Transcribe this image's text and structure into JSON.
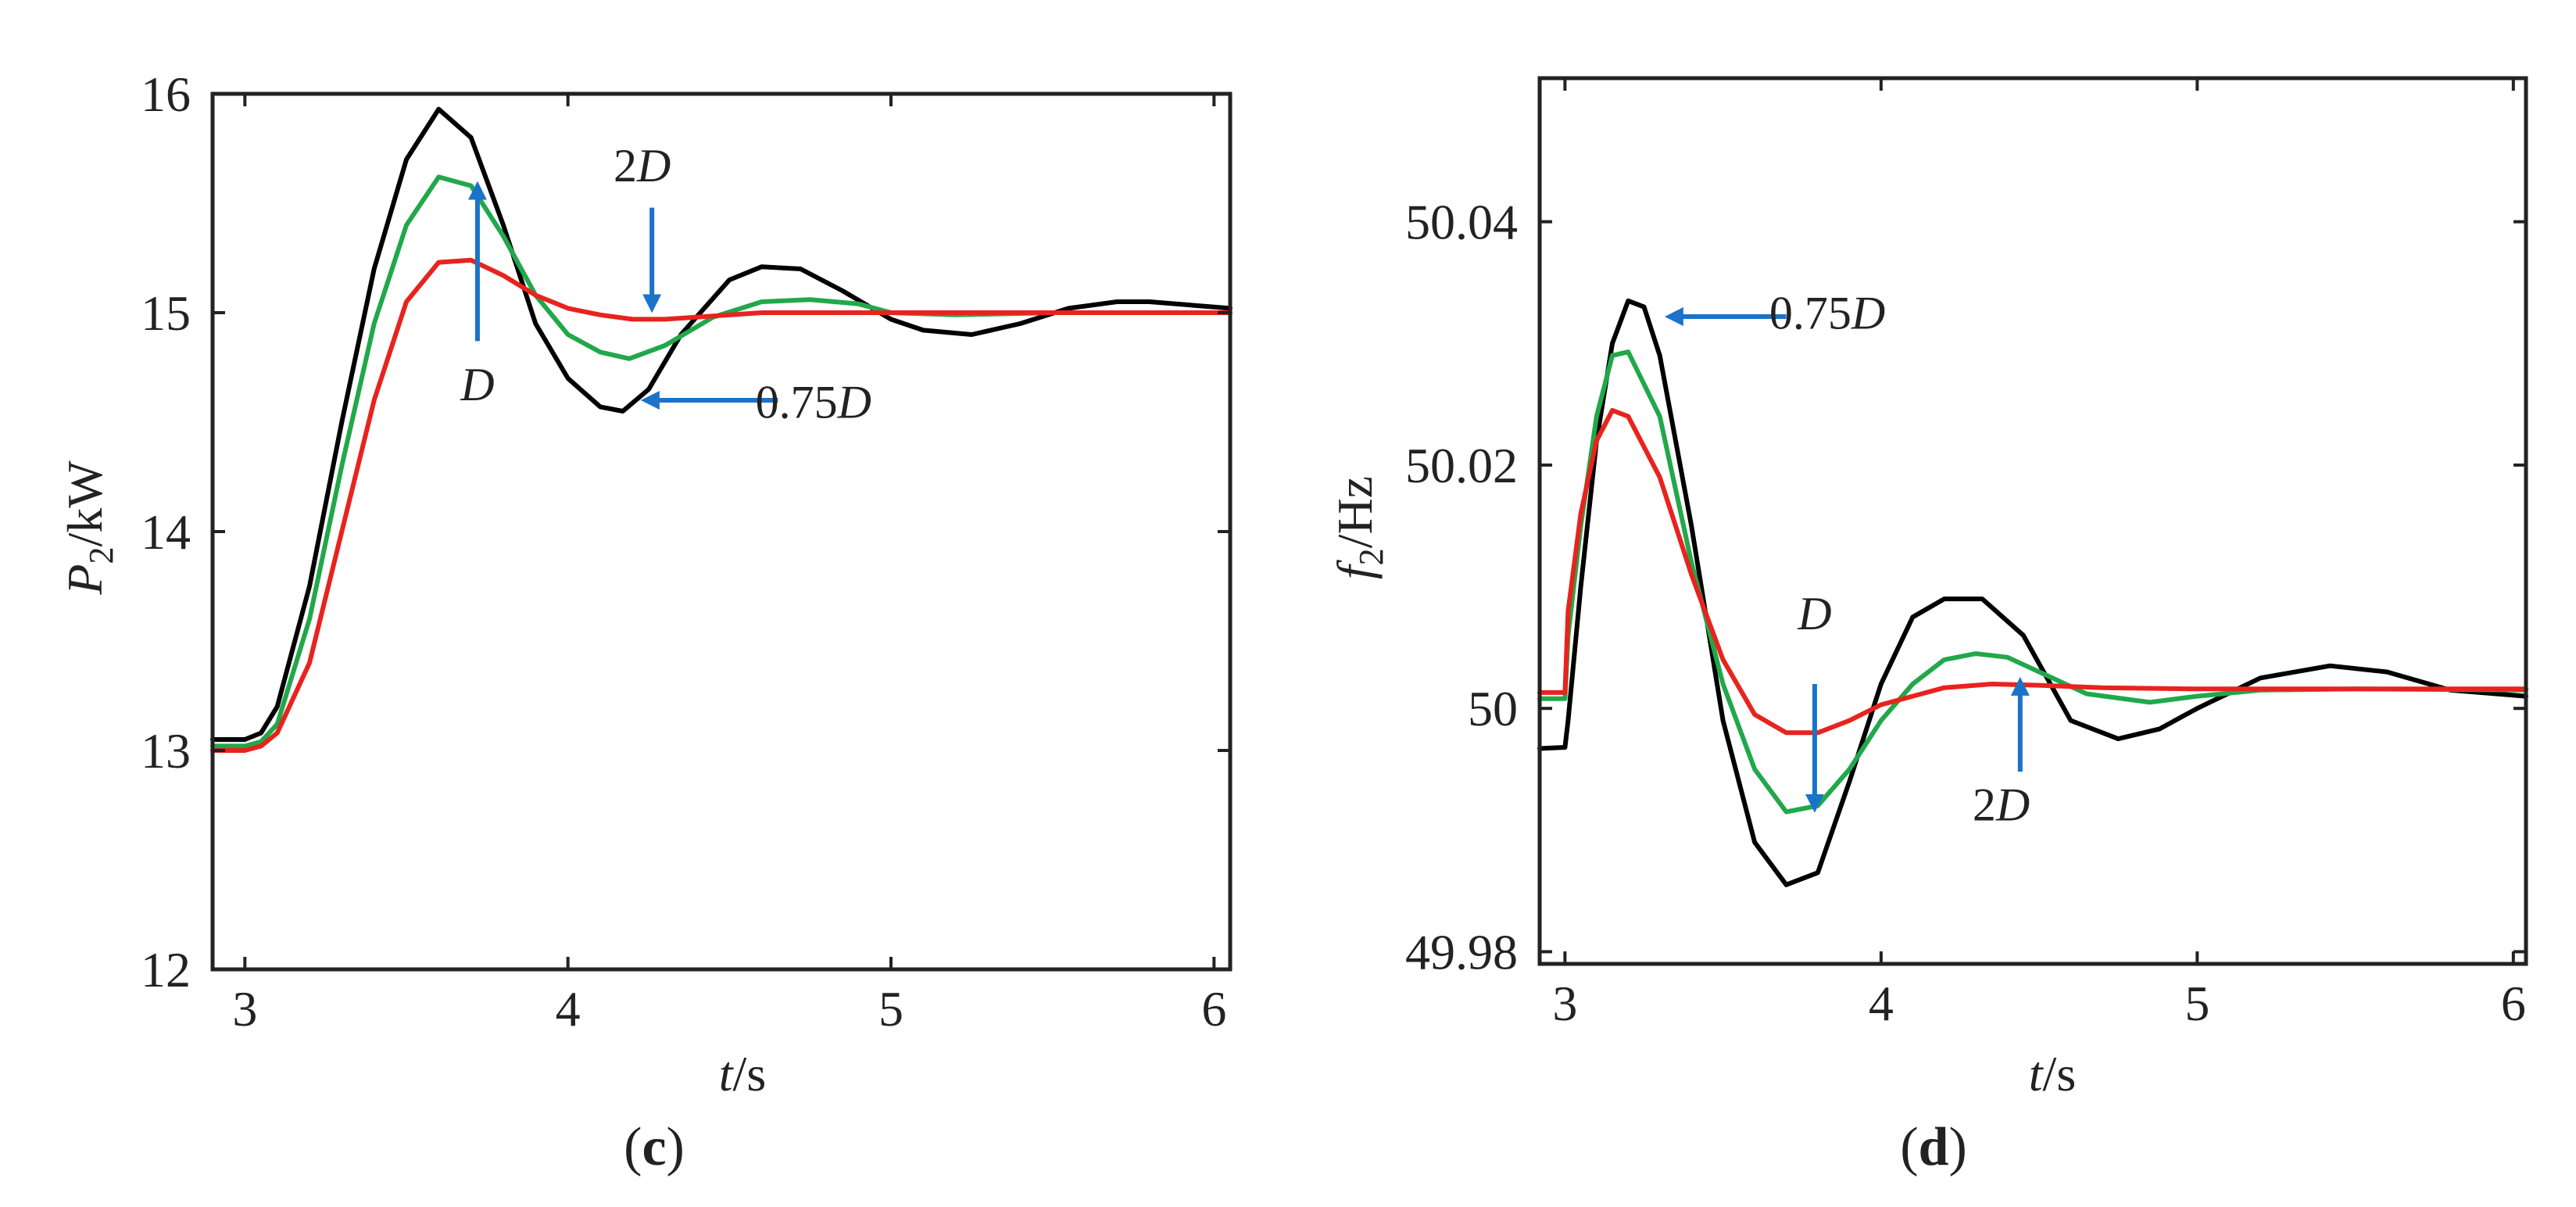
{
  "chart_data": [
    {
      "type": "line",
      "panel": "c",
      "xlabel": {
        "var": "t",
        "unit": "/s"
      },
      "ylabel": {
        "var": "P",
        "sub": "2",
        "unit": "/kW"
      },
      "xlim": [
        2.9,
        6.05
      ],
      "ylim": [
        12,
        16
      ],
      "xticks": [
        3,
        4,
        5,
        6
      ],
      "xtick_labels": [
        "3",
        "4",
        "5",
        "6"
      ],
      "yticks": [
        12,
        13,
        14,
        15,
        16
      ],
      "ytick_labels": [
        "12",
        "13",
        "14",
        "15",
        "16"
      ],
      "series": [
        {
          "name": "0.75D",
          "color": "#000000",
          "x": [
            2.9,
            3.0,
            3.05,
            3.1,
            3.2,
            3.3,
            3.4,
            3.5,
            3.6,
            3.7,
            3.8,
            3.9,
            4.0,
            4.1,
            4.17,
            4.25,
            4.35,
            4.5,
            4.6,
            4.72,
            4.85,
            5.0,
            5.1,
            5.25,
            5.4,
            5.55,
            5.7,
            5.8,
            6.05
          ],
          "y": [
            13.05,
            13.05,
            13.08,
            13.2,
            13.75,
            14.5,
            15.2,
            15.7,
            15.93,
            15.8,
            15.4,
            14.95,
            14.7,
            14.57,
            14.55,
            14.65,
            14.9,
            15.15,
            15.21,
            15.2,
            15.1,
            14.97,
            14.92,
            14.9,
            14.95,
            15.02,
            15.05,
            15.05,
            15.02
          ]
        },
        {
          "name": "D",
          "color": "#21a84a",
          "x": [
            2.9,
            3.0,
            3.05,
            3.1,
            3.2,
            3.3,
            3.4,
            3.5,
            3.6,
            3.7,
            3.8,
            3.9,
            4.0,
            4.1,
            4.19,
            4.3,
            4.45,
            4.6,
            4.75,
            4.9,
            5.0,
            5.2,
            5.5,
            6.05
          ],
          "y": [
            13.02,
            13.02,
            13.04,
            13.12,
            13.6,
            14.3,
            14.95,
            15.4,
            15.62,
            15.58,
            15.35,
            15.08,
            14.9,
            14.82,
            14.79,
            14.85,
            14.98,
            15.05,
            15.06,
            15.04,
            15.0,
            14.99,
            15.0,
            15.0
          ]
        },
        {
          "name": "2D",
          "color": "#e8231e",
          "x": [
            2.9,
            3.0,
            3.05,
            3.1,
            3.2,
            3.3,
            3.4,
            3.5,
            3.6,
            3.7,
            3.8,
            3.9,
            4.0,
            4.1,
            4.2,
            4.3,
            4.4,
            4.6,
            4.8,
            5.0,
            5.5,
            6.05
          ],
          "y": [
            13.0,
            13.0,
            13.02,
            13.08,
            13.4,
            14.0,
            14.6,
            15.05,
            15.23,
            15.24,
            15.17,
            15.08,
            15.02,
            14.99,
            14.97,
            14.97,
            14.98,
            15.0,
            15.0,
            15.0,
            15.0,
            15.0
          ]
        }
      ],
      "annotations": [
        {
          "text": "2D",
          "var": "D",
          "coef": "2",
          "label_xy": [
            4.23,
            15.6
          ],
          "arrow_from": [
            4.26,
            15.48
          ],
          "arrow_to": [
            4.26,
            15.02
          ],
          "color": "#1a73c8"
        },
        {
          "text": "D",
          "var": "D",
          "coef": "",
          "label_xy": [
            3.72,
            14.6
          ],
          "arrow_from": [
            3.72,
            14.87
          ],
          "arrow_to": [
            3.72,
            15.58
          ],
          "color": "#1a73c8"
        },
        {
          "text": "0.75D",
          "var": "D",
          "coef": "0.75",
          "label_xy": [
            4.76,
            14.52
          ],
          "arrow_from": [
            4.65,
            14.6
          ],
          "arrow_to": [
            4.24,
            14.6
          ],
          "color": "#1a73c8"
        }
      ]
    },
    {
      "type": "line",
      "panel": "d",
      "xlabel": {
        "var": "t",
        "unit": "/s"
      },
      "ylabel": {
        "var": "f",
        "sub": "2",
        "unit": "/Hz"
      },
      "xlim": [
        2.92,
        6.04
      ],
      "ylim": [
        49.979,
        50.0518
      ],
      "xticks": [
        3,
        4,
        5,
        6
      ],
      "xtick_labels": [
        "3",
        "4",
        "5",
        "6"
      ],
      "yticks": [
        49.98,
        50.0,
        50.02,
        50.04
      ],
      "ytick_labels": [
        "49.98",
        "50",
        "50.02",
        "50.04"
      ],
      "series": [
        {
          "name": "0.75D",
          "color": "#000000",
          "x": [
            2.92,
            3.0,
            3.01,
            3.05,
            3.1,
            3.15,
            3.2,
            3.25,
            3.3,
            3.4,
            3.5,
            3.6,
            3.7,
            3.8,
            3.9,
            4.0,
            4.1,
            4.2,
            4.32,
            4.45,
            4.6,
            4.75,
            4.88,
            5.0,
            5.2,
            5.42,
            5.6,
            5.8,
            6.04
          ],
          "y": [
            49.9967,
            49.9968,
            49.999,
            50.01,
            50.022,
            50.03,
            50.0335,
            50.033,
            50.029,
            50.015,
            49.999,
            49.989,
            49.9855,
            49.9865,
            49.994,
            50.002,
            50.0075,
            50.009,
            50.009,
            50.006,
            49.999,
            49.9975,
            49.9983,
            50.0,
            50.0025,
            50.0035,
            50.003,
            50.0015,
            50.001
          ]
        },
        {
          "name": "D",
          "color": "#21a84a",
          "x": [
            2.92,
            3.0,
            3.01,
            3.05,
            3.1,
            3.15,
            3.2,
            3.3,
            3.4,
            3.5,
            3.6,
            3.7,
            3.8,
            3.9,
            4.0,
            4.1,
            4.2,
            4.3,
            4.4,
            4.5,
            4.65,
            4.85,
            5.0,
            5.2,
            5.5,
            6.04
          ],
          "y": [
            50.0008,
            50.0008,
            50.006,
            50.015,
            50.024,
            50.029,
            50.0293,
            50.024,
            50.012,
            50.002,
            49.995,
            49.9915,
            49.992,
            49.995,
            49.999,
            50.002,
            50.004,
            50.0045,
            50.0042,
            50.003,
            50.0012,
            50.0005,
            50.001,
            50.0015,
            50.0016,
            50.0015
          ]
        },
        {
          "name": "2D",
          "color": "#e8231e",
          "x": [
            2.92,
            3.0,
            3.01,
            3.05,
            3.1,
            3.15,
            3.2,
            3.3,
            3.4,
            3.5,
            3.6,
            3.7,
            3.8,
            3.9,
            4.0,
            4.1,
            4.2,
            4.35,
            4.5,
            4.7,
            5.0,
            5.5,
            6.04
          ],
          "y": [
            50.0013,
            50.0013,
            50.008,
            50.016,
            50.022,
            50.0245,
            50.024,
            50.019,
            50.011,
            50.004,
            49.9995,
            49.998,
            49.998,
            49.999,
            50.0003,
            50.001,
            50.0017,
            50.002,
            50.0019,
            50.0017,
            50.0016,
            50.0016,
            50.0016
          ]
        }
      ],
      "annotations": [
        {
          "text": "0.75D",
          "var": "D",
          "coef": "0.75",
          "label_xy": [
            3.83,
            50.0312
          ],
          "arrow_from": [
            3.7,
            50.0322
          ],
          "arrow_to": [
            3.33,
            50.0322
          ],
          "color": "#1a73c8"
        },
        {
          "text": "D",
          "var": "D",
          "coef": "",
          "label_xy": [
            3.79,
            50.0065
          ],
          "arrow_from": [
            3.79,
            50.002
          ],
          "arrow_to": [
            3.79,
            49.9918
          ],
          "color": "#1a73c8"
        },
        {
          "text": "2D",
          "var": "D",
          "coef": "2",
          "label_xy": [
            4.38,
            49.9908
          ],
          "arrow_from": [
            4.44,
            49.9948
          ],
          "arrow_to": [
            4.44,
            50.0022
          ],
          "color": "#1a73c8"
        }
      ]
    }
  ],
  "panel_labels": {
    "c": {
      "open": "(",
      "letter": "c",
      "close": ")"
    },
    "d": {
      "open": "(",
      "letter": "d",
      "close": ")"
    }
  }
}
